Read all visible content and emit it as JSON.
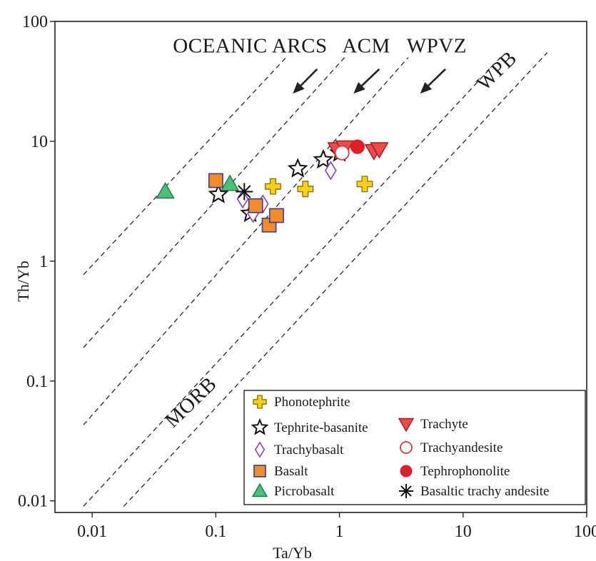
{
  "chart_data": {
    "type": "scatter",
    "xlabel": "Ta/Yb",
    "ylabel": "Th/Yb",
    "xscale": "log",
    "yscale": "log",
    "xlim": [
      0.005,
      100
    ],
    "ylim": [
      0.008,
      100
    ],
    "xticks": [
      0.01,
      0.1,
      1,
      10,
      100
    ],
    "xtick_labels": [
      "0.01",
      "0.1",
      "1",
      "10",
      "100"
    ],
    "yticks": [
      0.01,
      0.1,
      1,
      10,
      100
    ],
    "ytick_labels": [
      "0.01",
      "0.1",
      "1",
      "10",
      "100"
    ],
    "grid": false,
    "legend_position": "bottom-right",
    "field_labels": [
      {
        "text": "OCEANIC ARCS",
        "x": 0.045,
        "y": 55
      },
      {
        "text": "ACM",
        "x": 1.05,
        "y": 55
      },
      {
        "text": "WPVZ",
        "x": 3.5,
        "y": 55
      },
      {
        "text": "WPB",
        "x": 15,
        "y": 26
      },
      {
        "text": "MORB",
        "x": 0.045,
        "y": 0.04
      }
    ],
    "boundary_lines": [
      {
        "x": [
          0.0085,
          0.37
        ],
        "y": [
          0.77,
          50
        ]
      },
      {
        "x": [
          0.0085,
          1.1
        ],
        "y": [
          0.19,
          50
        ]
      },
      {
        "x": [
          0.0085,
          3.6
        ],
        "y": [
          0.043,
          50
        ]
      },
      {
        "x": [
          0.0085,
          20
        ],
        "y": [
          0.009,
          50
        ]
      },
      {
        "x": [
          0.018,
          48
        ],
        "y": [
          0.009,
          55
        ]
      }
    ],
    "trend_arrows": [
      {
        "from": [
          0.66,
          40
        ],
        "to": [
          0.42,
          25
        ]
      },
      {
        "from": [
          2.1,
          40
        ],
        "to": [
          1.3,
          25
        ]
      },
      {
        "from": [
          7.2,
          40
        ],
        "to": [
          4.5,
          25
        ]
      }
    ],
    "series": [
      {
        "name": "Phonotephrite",
        "marker": "plus",
        "color": "#f7d117",
        "stroke": "#8a6d00",
        "x": [
          0.29,
          0.53,
          1.6
        ],
        "y": [
          4.2,
          4.0,
          4.4
        ]
      },
      {
        "name": "Tephrite-basanite",
        "marker": "star",
        "color": "#ffffff",
        "stroke": "#111111",
        "x": [
          0.105,
          0.19,
          0.46,
          0.74,
          1.0
        ],
        "y": [
          3.6,
          2.5,
          5.9,
          7.0,
          8.0
        ]
      },
      {
        "name": "Trachybasalt",
        "marker": "diamond",
        "color": "#ffffff",
        "stroke": "#8b3db0",
        "x": [
          0.165,
          0.2,
          0.24,
          0.85
        ],
        "y": [
          3.3,
          2.5,
          3.0,
          5.7
        ]
      },
      {
        "name": "Basalt",
        "marker": "square",
        "color": "#f28c28",
        "stroke": "#3b3b8f",
        "x": [
          0.1,
          0.21,
          0.27,
          0.31
        ],
        "y": [
          4.7,
          2.9,
          2.0,
          2.4
        ]
      },
      {
        "name": "Picrobasalt",
        "marker": "triangle-up",
        "color": "#4cbf7a",
        "stroke": "#1e7a43",
        "x": [
          0.039,
          0.13
        ],
        "y": [
          3.8,
          4.4
        ]
      },
      {
        "name": "Trachyte",
        "marker": "triangle-down",
        "color": "#ef4b4b",
        "stroke": "#a01818",
        "x": [
          0.95,
          1.1,
          1.9,
          2.1
        ],
        "y": [
          8.6,
          8.9,
          8.3,
          8.6
        ]
      },
      {
        "name": "Trachyandesite",
        "marker": "circle-open",
        "color": "#ffffff",
        "stroke": "#d93a3a",
        "x": [
          1.05
        ],
        "y": [
          8.0
        ]
      },
      {
        "name": "Tephrophonolite",
        "marker": "circle",
        "color": "#e11f2b",
        "stroke": "#e11f2b",
        "x": [
          1.4
        ],
        "y": [
          9.0
        ]
      },
      {
        "name": "Basaltic trachy andesite",
        "marker": "asterisk",
        "color": "#111111",
        "stroke": "#111111",
        "x": [
          0.17
        ],
        "y": [
          3.8
        ]
      }
    ]
  }
}
